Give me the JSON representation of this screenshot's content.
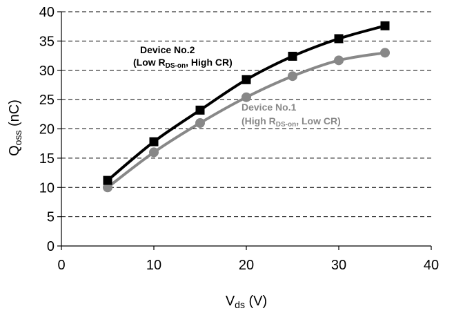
{
  "chart_data": {
    "type": "line",
    "xlabel": {
      "main": "V",
      "sub": "ds",
      "unit": " (V)"
    },
    "ylabel": {
      "main": "Q",
      "sub": "oss",
      "unit": " (nC)"
    },
    "xlim": [
      0,
      40
    ],
    "ylim": [
      0,
      40
    ],
    "x_ticks": [
      0,
      10,
      20,
      30,
      40
    ],
    "y_ticks": [
      0,
      5,
      10,
      15,
      20,
      25,
      30,
      35,
      40
    ],
    "grid": "horizontal dashed",
    "series": [
      {
        "name": "Device No.2",
        "marker": "square",
        "color": "#000000",
        "x": [
          5,
          10,
          15,
          20,
          25,
          30,
          35
        ],
        "y": [
          11.2,
          17.8,
          23.2,
          28.4,
          32.4,
          35.4,
          37.6
        ]
      },
      {
        "name": "Device No.1",
        "marker": "circle",
        "color": "#888888",
        "x": [
          5,
          10,
          15,
          20,
          25,
          30,
          35
        ],
        "y": [
          10.0,
          16.0,
          21.0,
          25.4,
          29.0,
          31.7,
          33.0
        ]
      }
    ],
    "annotations": [
      {
        "series": "Device No.2",
        "line1": "Device No.2",
        "line2_prefix": "(Low R",
        "line2_sub": "DS-on",
        "line2_suffix": ", High CR)",
        "color": "#000000"
      },
      {
        "series": "Device No.1",
        "line1": "Device No.1",
        "line2_prefix": "(High R",
        "line2_sub": "DS-on",
        "line2_suffix": ", Low CR)",
        "color": "#888888"
      }
    ]
  }
}
